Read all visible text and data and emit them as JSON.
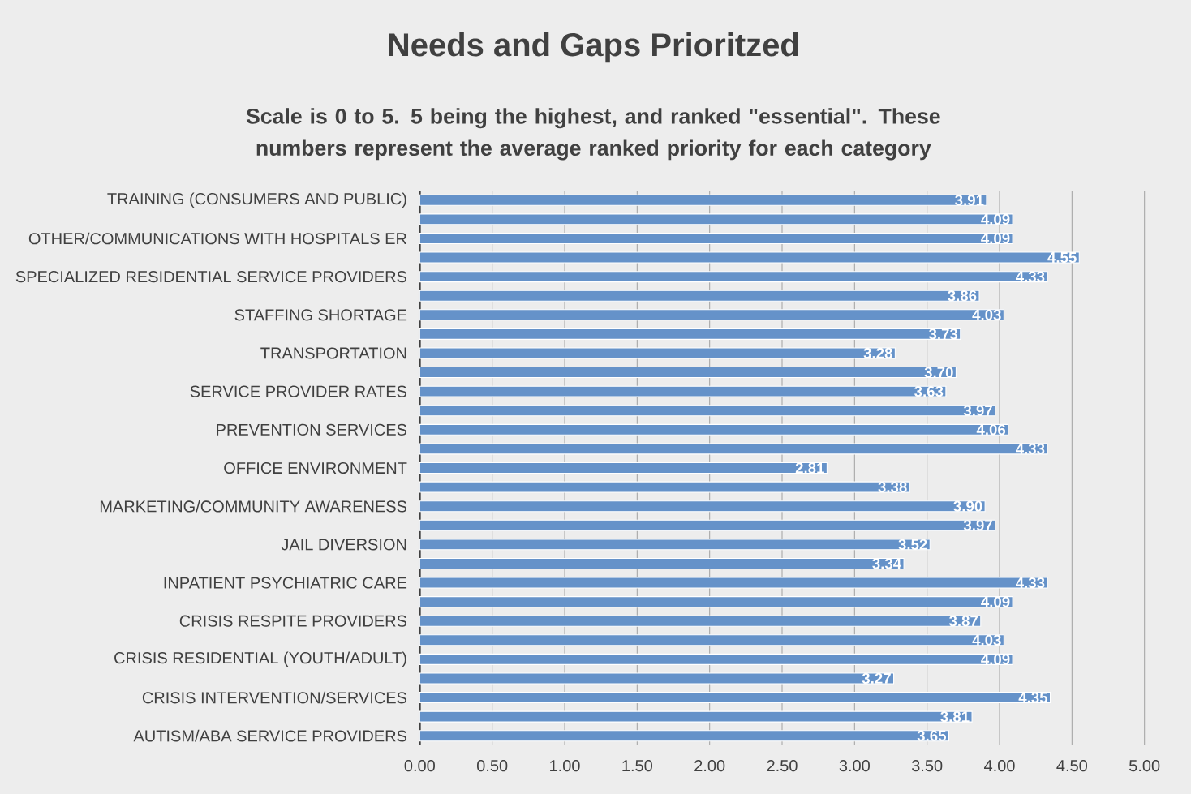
{
  "chart_data": {
    "type": "bar",
    "orientation": "horizontal",
    "title": "Needs and Gaps Prioritzed",
    "subtitle": "Scale is 0 to 5. 5 being the highest, and ranked \"essential\". These numbers represent the average ranked priority for each category",
    "categories": [
      "TRAINING (CONSUMERS AND PUBLIC)",
      null,
      "OTHER/COMMUNICATIONS WITH HOSPITALS ER",
      null,
      "SPECIALIZED RESIDENTIAL SERVICE PROVIDERS",
      null,
      "STAFFING SHORTAGE",
      null,
      "TRANSPORTATION",
      null,
      "SERVICE PROVIDER RATES",
      null,
      "PREVENTION SERVICES",
      null,
      "OFFICE ENVIRONMENT",
      null,
      "MARKETING/COMMUNITY AWARENESS",
      null,
      "JAIL DIVERSION",
      null,
      "INPATIENT PSYCHIATRIC CARE",
      null,
      "CRISIS RESPITE PROVIDERS",
      null,
      "CRISIS RESIDENTIAL (YOUTH/ADULT)",
      null,
      "CRISIS INTERVENTION/SERVICES",
      null,
      "AUTISM/ABA SERVICE PROVIDERS"
    ],
    "values": [
      3.91,
      4.09,
      4.09,
      4.55,
      4.33,
      3.86,
      4.03,
      3.73,
      3.28,
      3.7,
      3.63,
      3.97,
      4.06,
      4.33,
      2.81,
      3.38,
      3.9,
      3.97,
      3.52,
      3.34,
      4.33,
      4.09,
      3.87,
      4.03,
      4.09,
      3.27,
      4.35,
      3.81,
      3.65
    ],
    "value_labels": [
      "3.91",
      "4.09",
      "4.09",
      "4.55",
      "4.33",
      "3.86",
      "4.03",
      "3.73",
      "3.28",
      "3.70",
      "3.63",
      "3.97",
      "4.06",
      "4.33",
      "2.81",
      "3.38",
      "3.90",
      "3.97",
      "3.52",
      "3.34",
      "4.33",
      "4.09",
      "3.87",
      "4.03",
      "4.09",
      "3.27",
      "4.35",
      "3.81",
      "3.65"
    ],
    "color": "#6592c9",
    "xlim": [
      0,
      5
    ],
    "xticks": [
      {
        "value": 0,
        "label": "0.00"
      },
      {
        "value": 0.5,
        "label": "0.50"
      },
      {
        "value": 1,
        "label": "1.00"
      },
      {
        "value": 1.5,
        "label": "1.50"
      },
      {
        "value": 2,
        "label": "2.00"
      },
      {
        "value": 2.5,
        "label": "2.50"
      },
      {
        "value": 3,
        "label": "3.00"
      },
      {
        "value": 3.5,
        "label": "3.50"
      },
      {
        "value": 4,
        "label": "4.00"
      },
      {
        "value": 4.5,
        "label": "4.50"
      },
      {
        "value": 5,
        "label": "5.00"
      }
    ],
    "grid": "x"
  }
}
